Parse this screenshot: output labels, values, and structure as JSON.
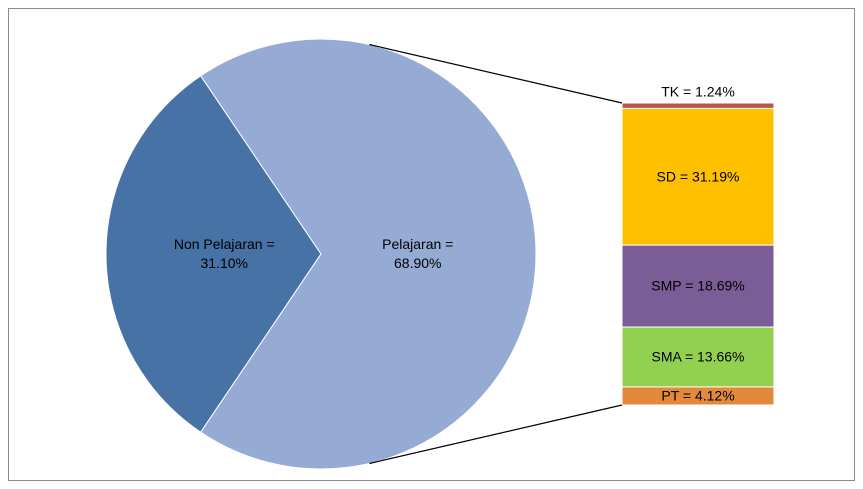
{
  "chart_data": {
    "type": "bar-of-pie",
    "pie": {
      "values": [
        31.1,
        68.9
      ],
      "value_labels": [
        "Non Pelajaran = 31.10%",
        "Pelajaran = 68.90%"
      ],
      "colors": [
        "#4672a6",
        "#95abd4"
      ]
    },
    "bar": {
      "values": [
        1.24,
        31.19,
        18.69,
        13.66,
        4.12
      ],
      "value_labels": [
        "TK = 1.24%",
        "SD = 31.19%",
        "SMP = 18.69%",
        "SMA = 13.66%",
        "PT = 4.12%"
      ],
      "colors": [
        "#c0504d",
        "#ffc000",
        "#7a5c96",
        "#92d050",
        "#e2893c"
      ]
    }
  }
}
